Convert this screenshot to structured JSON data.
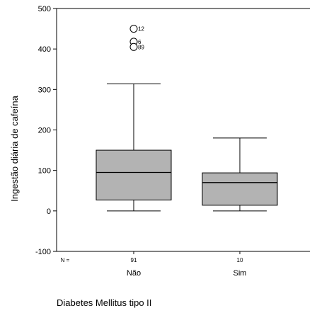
{
  "chart_data": {
    "type": "boxplot",
    "title": "",
    "xlabel": "Diabetes Mellitus tipo II",
    "ylabel": "Ingestão diária de cafeína",
    "ylim": [
      -100,
      500
    ],
    "yticks": [
      "-100",
      "0",
      "100",
      "200",
      "300",
      "400",
      "500"
    ],
    "n_label": "N =",
    "grid": false,
    "box_color": "#b3b3b3",
    "categories": [
      "Não",
      "Sim"
    ],
    "groups": [
      {
        "category": "Não",
        "n": "91",
        "min": 0,
        "q1": 27,
        "median": 95,
        "q3": 150,
        "max": 314,
        "outliers": [
          {
            "value": 450,
            "label": "12"
          },
          {
            "value": 418,
            "label": "6"
          },
          {
            "value": 405,
            "label": "89"
          }
        ]
      },
      {
        "category": "Sim",
        "n": "10",
        "min": 0,
        "q1": 14,
        "median": 70,
        "q3": 94,
        "max": 180,
        "outliers": []
      }
    ]
  }
}
